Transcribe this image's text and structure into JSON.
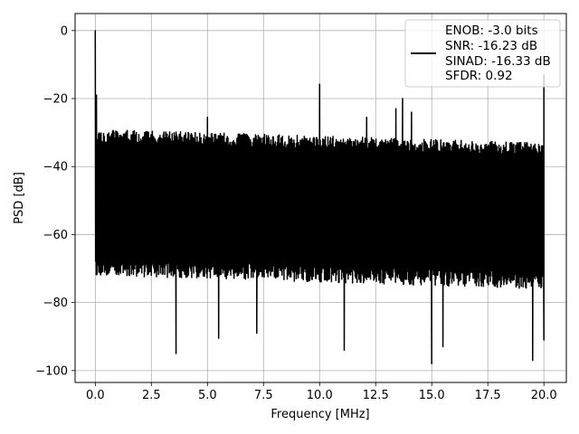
{
  "chart_data": {
    "type": "line",
    "xlabel": "Frequency [MHz]",
    "ylabel": "PSD [dB]",
    "xlim": [
      -0.9,
      21.0
    ],
    "ylim": [
      -103.5,
      5.0
    ],
    "x_ticks": [
      0.0,
      2.5,
      5.0,
      7.5,
      10.0,
      12.5,
      15.0,
      17.5,
      20.0
    ],
    "x_tick_labels": [
      "0.0",
      "2.5",
      "5.0",
      "7.5",
      "10.0",
      "12.5",
      "15.0",
      "17.5",
      "20.0"
    ],
    "y_ticks": [
      0,
      -20,
      -40,
      -60,
      -80,
      -100
    ],
    "y_tick_labels": [
      "0",
      "−20",
      "−40",
      "−60",
      "−80",
      "−100"
    ],
    "grid": true,
    "legend_placement": "top-right",
    "series": [
      {
        "name": "ENOB: -3.0 bits\nSNR: -16.23 dB\nSINAD: -16.33 dB\nSFDR: 0.92",
        "legend_lines": [
          "ENOB: -3.0 bits",
          "SNR: -16.23 dB",
          "SINAD: -16.33 dB",
          "SFDR: 0.92"
        ],
        "color": "#000000",
        "noise_floor": {
          "x": [
            0.0,
            20.0
          ],
          "upper_db": [
            -29,
            -33
          ],
          "lower_db": [
            -72,
            -76
          ],
          "mean_db": [
            -50,
            -54
          ]
        },
        "peaks": [
          {
            "x": 0.0,
            "y": 0.0
          },
          {
            "x": 0.05,
            "y": -19.0
          },
          {
            "x": 5.0,
            "y": -25.5
          },
          {
            "x": 10.0,
            "y": -15.8
          },
          {
            "x": 12.1,
            "y": -25.5
          },
          {
            "x": 13.4,
            "y": -23.0
          },
          {
            "x": 13.7,
            "y": -20.0
          },
          {
            "x": 14.1,
            "y": -24.0
          },
          {
            "x": 20.0,
            "y": -13.0
          }
        ],
        "dips": [
          {
            "x": 3.6,
            "y": -95.0
          },
          {
            "x": 5.5,
            "y": -90.5
          },
          {
            "x": 7.2,
            "y": -89.0
          },
          {
            "x": 11.1,
            "y": -94.0
          },
          {
            "x": 15.0,
            "y": -98.0
          },
          {
            "x": 15.5,
            "y": -93.0
          },
          {
            "x": 19.5,
            "y": -97.0
          },
          {
            "x": 20.0,
            "y": -91.0
          }
        ]
      }
    ]
  }
}
